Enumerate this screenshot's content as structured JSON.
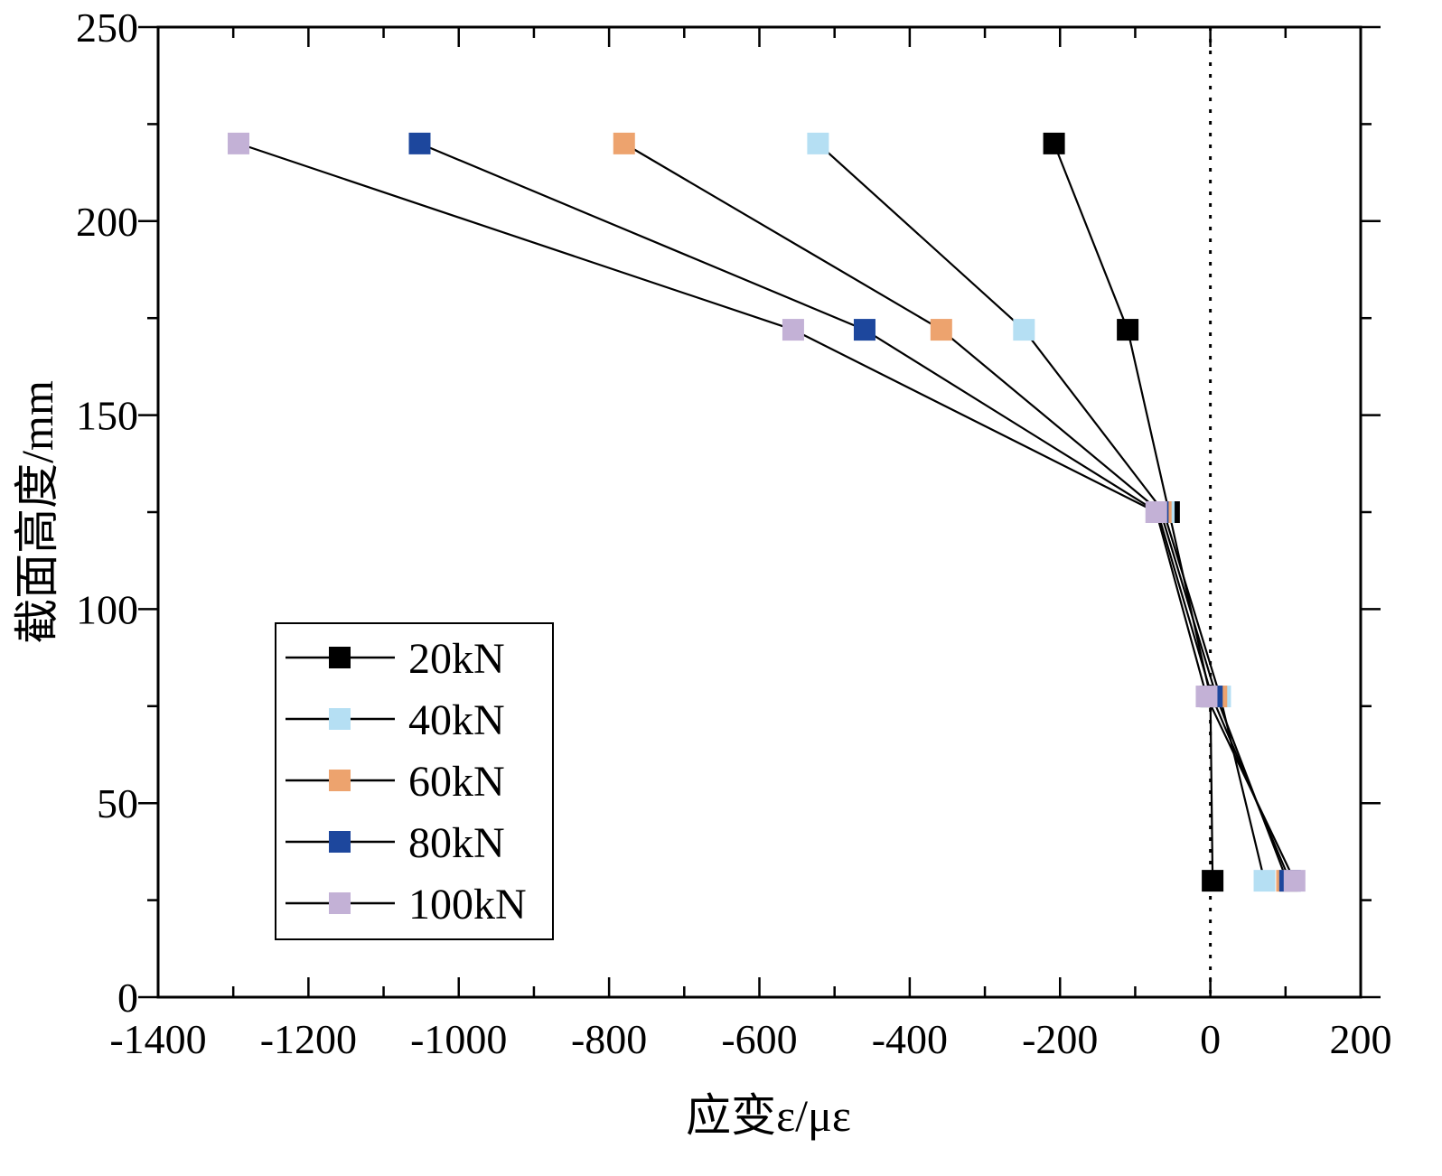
{
  "chart_data": {
    "type": "line",
    "title": "",
    "xlabel": "应变ε/με",
    "ylabel": "截面高度/mm",
    "xlim": [
      -1400,
      200
    ],
    "ylim": [
      0,
      250
    ],
    "x_ticks": [
      -1400,
      -1200,
      -1000,
      -800,
      -600,
      -400,
      -200,
      0,
      200
    ],
    "x_tick_labels": [
      "-1400",
      "-1200",
      "-1000",
      "-800",
      "-600",
      "-400",
      "-200",
      "0",
      "200"
    ],
    "y_ticks": [
      0,
      50,
      100,
      150,
      200,
      250
    ],
    "y_tick_labels": [
      "0",
      "50",
      "100",
      "150",
      "200",
      "250"
    ],
    "x_minor_step": 100,
    "y_minor_step": 25,
    "reference_line": {
      "x": 0,
      "style": "dotted"
    },
    "legend_position": "lower-left",
    "series": [
      {
        "name": "20kN",
        "color": "#000000",
        "x": [
          -208,
          -110,
          -55,
          0,
          3
        ],
        "y": [
          220,
          172,
          125,
          77.5,
          30
        ]
      },
      {
        "name": "40kN",
        "color": "#B5DFF3",
        "x": [
          -522,
          -248,
          -62,
          13,
          72
        ],
        "y": [
          220,
          172,
          125,
          77.5,
          30
        ]
      },
      {
        "name": "60kN",
        "color": "#EDA36E",
        "x": [
          -780,
          -358,
          -66,
          8,
          102
        ],
        "y": [
          220,
          172,
          125,
          77.5,
          30
        ]
      },
      {
        "name": "80kN",
        "color": "#1D479D",
        "x": [
          -1052,
          -460,
          -70,
          2,
          106
        ],
        "y": [
          220,
          172,
          125,
          77.5,
          30
        ]
      },
      {
        "name": "100kN",
        "color": "#C3B1D6",
        "x": [
          -1293,
          -555,
          -72,
          -5,
          112
        ],
        "y": [
          220,
          172,
          125,
          77.5,
          30
        ]
      }
    ]
  }
}
